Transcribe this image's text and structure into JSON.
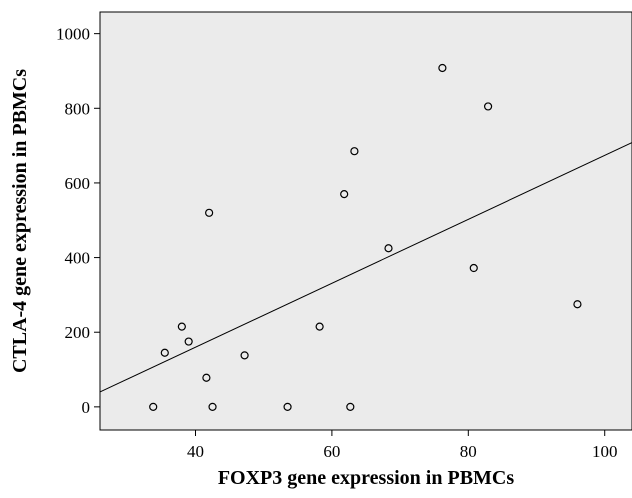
{
  "chart_data": {
    "type": "scatter",
    "xlabel": "FOXP3 gene expression in PBMCs",
    "ylabel": "CTLA-4 gene expression in PBMCs",
    "xlim": [
      26,
      104
    ],
    "ylim": [
      -62,
      1058
    ],
    "xticks": [
      40,
      60,
      80,
      100
    ],
    "yticks": [
      0,
      200,
      400,
      600,
      800,
      1000
    ],
    "xtick_labels": [
      "40",
      "60",
      "80",
      "100"
    ],
    "ytick_labels": [
      "0",
      "200",
      "400",
      "600",
      "800",
      "1000"
    ],
    "points": [
      {
        "x": 33.8,
        "y": 0
      },
      {
        "x": 35.5,
        "y": 145
      },
      {
        "x": 38.0,
        "y": 215
      },
      {
        "x": 39.0,
        "y": 175
      },
      {
        "x": 41.6,
        "y": 78
      },
      {
        "x": 42.0,
        "y": 520
      },
      {
        "x": 42.5,
        "y": 0
      },
      {
        "x": 47.2,
        "y": 138
      },
      {
        "x": 53.5,
        "y": 0
      },
      {
        "x": 58.2,
        "y": 215
      },
      {
        "x": 61.8,
        "y": 570
      },
      {
        "x": 62.7,
        "y": 0
      },
      {
        "x": 63.3,
        "y": 685
      },
      {
        "x": 68.3,
        "y": 425
      },
      {
        "x": 76.2,
        "y": 908
      },
      {
        "x": 80.8,
        "y": 372
      },
      {
        "x": 82.9,
        "y": 805
      },
      {
        "x": 96.0,
        "y": 275
      }
    ],
    "fit_line": {
      "x": [
        26,
        104
      ],
      "y": [
        40,
        708
      ]
    },
    "grid": false,
    "legend": "none",
    "colors": {
      "plot_background": "#ebebeb",
      "marker_edge": "#000000",
      "fit_line": "#000000"
    }
  }
}
